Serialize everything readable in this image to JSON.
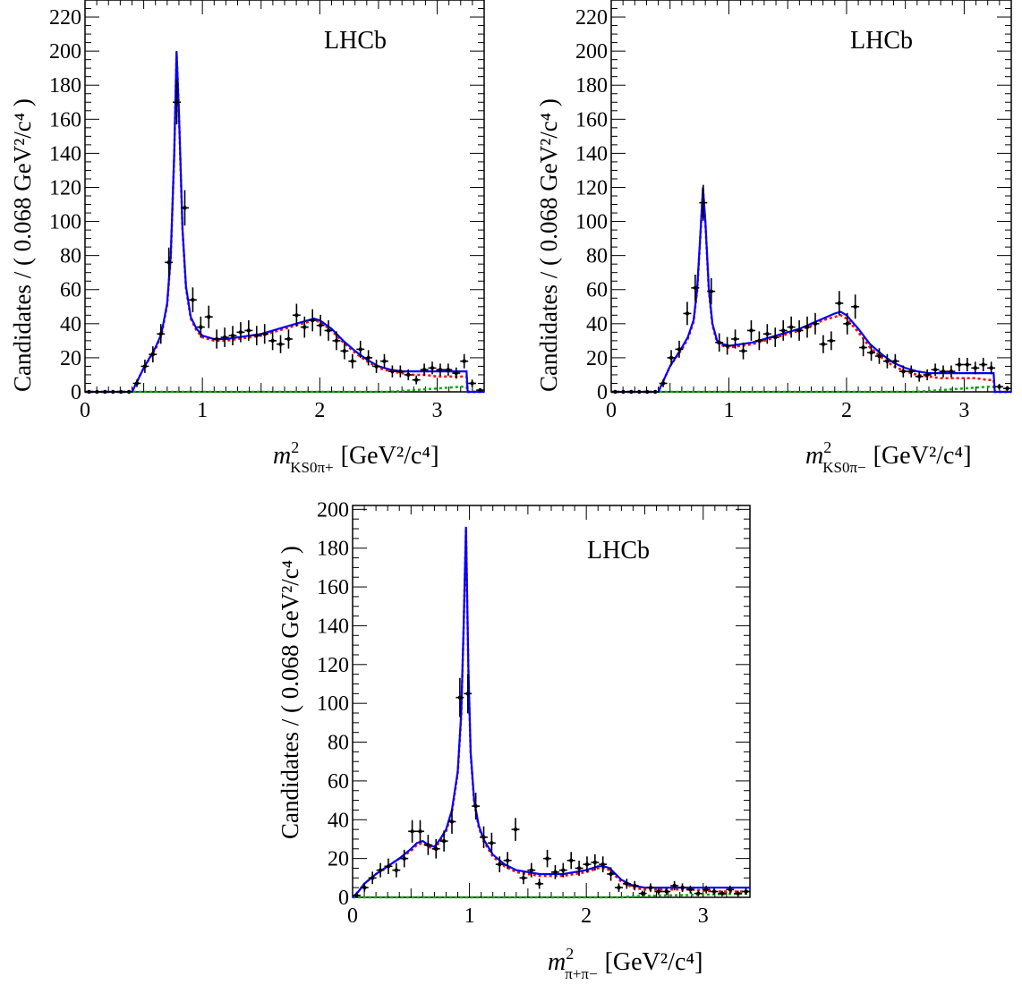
{
  "figure_title": "",
  "colors": {
    "total_fit": "#0000ff",
    "signal": "#ff0000",
    "background": "#00b000",
    "data": "#000000",
    "frame": "#000000"
  },
  "chart_data": [
    {
      "type": "scatter",
      "id": "kspi-plus",
      "title": "",
      "experiment_label": "LHCb",
      "ylabel": "Candidates / ( 0.068 GeV²/c⁴ )",
      "xlabel": {
        "main": "m",
        "sup": "2",
        "sub": "KS0π+",
        "unit": "[GeV²/c⁴]"
      },
      "xlim": [
        0,
        3.4
      ],
      "ylim": [
        0,
        230
      ],
      "x_ticks": [
        0,
        1,
        2,
        3
      ],
      "y_ticks": [
        0,
        20,
        40,
        60,
        80,
        100,
        120,
        140,
        160,
        180,
        200,
        220
      ],
      "grid": false,
      "legend": "none",
      "data_points": {
        "x": [
          0.034,
          0.102,
          0.17,
          0.238,
          0.306,
          0.374,
          0.442,
          0.51,
          0.578,
          0.646,
          0.714,
          0.782,
          0.85,
          0.918,
          0.986,
          1.054,
          1.122,
          1.19,
          1.258,
          1.326,
          1.394,
          1.462,
          1.53,
          1.598,
          1.666,
          1.734,
          1.802,
          1.87,
          1.938,
          2.006,
          2.074,
          2.142,
          2.21,
          2.278,
          2.346,
          2.414,
          2.482,
          2.55,
          2.618,
          2.686,
          2.754,
          2.822,
          2.89,
          2.958,
          3.026,
          3.094,
          3.162,
          3.23,
          3.298,
          3.366
        ],
        "y": [
          0,
          0,
          0,
          0,
          0,
          0,
          5,
          15,
          22,
          34,
          76,
          170,
          108,
          54,
          38,
          44,
          31,
          32,
          33,
          35,
          36,
          33,
          34,
          30,
          28,
          31,
          45,
          38,
          42,
          39,
          36,
          30,
          24,
          18,
          25,
          20,
          15,
          18,
          12,
          12,
          10,
          7,
          13,
          14,
          13,
          13,
          11,
          18,
          5,
          1
        ],
        "yerr": [
          0,
          0,
          0,
          0,
          0,
          0,
          2.2,
          3.9,
          4.7,
          5.8,
          8.7,
          13.0,
          10.4,
          7.3,
          6.2,
          6.6,
          5.6,
          5.7,
          5.7,
          5.9,
          6.0,
          5.7,
          5.8,
          5.5,
          5.3,
          5.6,
          6.7,
          6.2,
          6.5,
          6.2,
          6.0,
          5.5,
          4.9,
          4.2,
          5.0,
          4.5,
          3.9,
          4.2,
          3.5,
          3.5,
          3.2,
          2.6,
          3.6,
          3.7,
          3.6,
          3.6,
          3.3,
          4.2,
          2.2,
          1
        ]
      },
      "fit_curves": {
        "x": [
          0.0,
          0.3,
          0.4,
          0.5,
          0.6,
          0.65,
          0.7,
          0.73,
          0.76,
          0.78,
          0.8,
          0.83,
          0.86,
          0.9,
          0.95,
          1.0,
          1.1,
          1.2,
          1.3,
          1.4,
          1.5,
          1.6,
          1.7,
          1.8,
          1.9,
          1.95,
          2.0,
          2.1,
          2.2,
          2.3,
          2.4,
          2.5,
          2.6,
          2.7,
          2.8,
          2.9,
          3.0,
          3.1,
          3.2,
          3.25,
          3.26,
          3.4
        ],
        "total": [
          0,
          0,
          0,
          14,
          26,
          34,
          52,
          80,
          140,
          200,
          165,
          96,
          62,
          44,
          37,
          33,
          31,
          31,
          32,
          33,
          34,
          36,
          38,
          40,
          42,
          43,
          42,
          37,
          30,
          24,
          19,
          15,
          13,
          12,
          12,
          12,
          12,
          12,
          12,
          12,
          0,
          0
        ],
        "signal": [
          0,
          0,
          0,
          14,
          25,
          33,
          51,
          79,
          139,
          199,
          164,
          95,
          61,
          43,
          36,
          32,
          30,
          30,
          31,
          32,
          33,
          35,
          37,
          39,
          41,
          42,
          41,
          36,
          29,
          23,
          18,
          14,
          12,
          11,
          10,
          10,
          9,
          9,
          9,
          9,
          0,
          0
        ],
        "background": [
          0,
          0,
          0,
          0,
          0,
          0,
          0,
          0,
          0,
          0,
          0,
          0,
          0,
          0,
          0,
          0,
          0,
          0,
          0,
          0,
          0,
          0,
          0,
          0,
          0,
          0,
          0,
          0,
          0,
          0,
          0,
          0,
          0,
          0.5,
          1,
          1.5,
          2,
          2.5,
          3,
          3,
          0,
          0
        ]
      }
    },
    {
      "type": "scatter",
      "id": "kspi-minus",
      "title": "",
      "experiment_label": "LHCb",
      "ylabel": "Candidates / ( 0.068 GeV²/c⁴ )",
      "xlabel": {
        "main": "m",
        "sup": "2",
        "sub": "KS0π−",
        "unit": "[GeV²/c⁴]"
      },
      "xlim": [
        0,
        3.4
      ],
      "ylim": [
        0,
        230
      ],
      "x_ticks": [
        0,
        1,
        2,
        3
      ],
      "y_ticks": [
        0,
        20,
        40,
        60,
        80,
        100,
        120,
        140,
        160,
        180,
        200,
        220
      ],
      "grid": false,
      "legend": "none",
      "data_points": {
        "x": [
          0.034,
          0.102,
          0.17,
          0.238,
          0.306,
          0.374,
          0.442,
          0.51,
          0.578,
          0.646,
          0.714,
          0.782,
          0.85,
          0.918,
          0.986,
          1.054,
          1.122,
          1.19,
          1.258,
          1.326,
          1.394,
          1.462,
          1.53,
          1.598,
          1.666,
          1.734,
          1.802,
          1.87,
          1.938,
          2.006,
          2.074,
          2.142,
          2.21,
          2.278,
          2.346,
          2.414,
          2.482,
          2.55,
          2.618,
          2.686,
          2.754,
          2.822,
          2.89,
          2.958,
          3.026,
          3.094,
          3.162,
          3.23,
          3.298,
          3.366
        ],
        "y": [
          0,
          0,
          0,
          0,
          0,
          0,
          5,
          20,
          25,
          46,
          61,
          111,
          59,
          29,
          27,
          31,
          24,
          36,
          30,
          34,
          32,
          36,
          38,
          36,
          38,
          40,
          28,
          30,
          52,
          40,
          50,
          26,
          23,
          21,
          18,
          18,
          12,
          12,
          9,
          10,
          13,
          12,
          12,
          16,
          16,
          14,
          16,
          14,
          3,
          2
        ],
        "yerr": [
          0,
          0,
          0,
          0,
          0,
          0,
          2.2,
          4.5,
          5.0,
          6.8,
          7.8,
          10.5,
          7.7,
          5.4,
          5.2,
          5.6,
          4.9,
          6.0,
          5.5,
          5.8,
          5.7,
          6.0,
          6.2,
          6.0,
          6.2,
          6.3,
          5.3,
          5.5,
          7.2,
          6.3,
          7.1,
          5.1,
          4.8,
          4.6,
          4.2,
          4.2,
          3.5,
          3.5,
          3.0,
          3.2,
          3.6,
          3.5,
          3.5,
          4.0,
          4.0,
          3.7,
          4.0,
          3.7,
          1.7,
          1.4
        ]
      },
      "fit_curves": {
        "x": [
          0.0,
          0.3,
          0.4,
          0.5,
          0.6,
          0.65,
          0.7,
          0.73,
          0.76,
          0.78,
          0.8,
          0.83,
          0.86,
          0.9,
          0.95,
          1.0,
          1.1,
          1.2,
          1.3,
          1.4,
          1.5,
          1.6,
          1.7,
          1.8,
          1.9,
          1.95,
          2.0,
          2.1,
          2.2,
          2.3,
          2.4,
          2.5,
          2.6,
          2.7,
          2.8,
          2.9,
          3.0,
          3.1,
          3.2,
          3.25,
          3.26,
          3.4
        ],
        "total": [
          0,
          0,
          0,
          15,
          26,
          32,
          42,
          60,
          95,
          120,
          100,
          60,
          40,
          30,
          28,
          27,
          28,
          29,
          31,
          33,
          35,
          37,
          40,
          43,
          46,
          47,
          45,
          37,
          28,
          22,
          17,
          14,
          12,
          11,
          11,
          11,
          11,
          11,
          11,
          11,
          0,
          0
        ],
        "signal": [
          0,
          0,
          0,
          15,
          25,
          31,
          41,
          59,
          94,
          119,
          99,
          59,
          39,
          29,
          27,
          26,
          27,
          28,
          30,
          32,
          34,
          36,
          39,
          42,
          44,
          45,
          43,
          35,
          26,
          20,
          15,
          12,
          10,
          9,
          8,
          8,
          8,
          8,
          7,
          7,
          0,
          0
        ],
        "background": [
          0,
          0,
          0,
          0,
          0,
          0,
          0,
          0,
          0,
          0,
          0,
          0,
          0,
          0,
          0,
          0,
          0,
          0,
          0,
          0,
          0,
          0,
          0,
          0,
          0,
          0,
          0,
          0,
          0,
          0,
          0,
          0,
          0,
          0.5,
          1,
          1.5,
          2,
          2.5,
          3,
          3,
          0,
          0
        ]
      }
    },
    {
      "type": "scatter",
      "id": "pipi",
      "title": "",
      "experiment_label": "LHCb",
      "ylabel": "Candidates / ( 0.068 GeV²/c⁴ )",
      "xlabel": {
        "main": "m",
        "sup": "2",
        "sub": "π+π−",
        "unit": "[GeV²/c⁴]"
      },
      "xlim": [
        0,
        3.4
      ],
      "ylim": [
        0,
        202
      ],
      "x_ticks": [
        0,
        1,
        2,
        3
      ],
      "y_ticks": [
        0,
        20,
        40,
        60,
        80,
        100,
        120,
        140,
        160,
        180,
        200
      ],
      "grid": false,
      "legend": "none",
      "data_points": {
        "x": [
          0.034,
          0.102,
          0.17,
          0.238,
          0.306,
          0.374,
          0.442,
          0.51,
          0.578,
          0.646,
          0.714,
          0.782,
          0.85,
          0.918,
          0.986,
          1.054,
          1.122,
          1.19,
          1.258,
          1.326,
          1.394,
          1.462,
          1.53,
          1.598,
          1.666,
          1.734,
          1.802,
          1.87,
          1.938,
          2.006,
          2.074,
          2.142,
          2.21,
          2.278,
          2.346,
          2.414,
          2.482,
          2.55,
          2.618,
          2.686,
          2.754,
          2.822,
          2.89,
          2.958,
          3.026,
          3.094,
          3.162,
          3.23,
          3.298,
          3.366
        ],
        "y": [
          1,
          5,
          10,
          14,
          16,
          14,
          20,
          34,
          34,
          27,
          25,
          29,
          39,
          103,
          105,
          47,
          31,
          28,
          17,
          19,
          35,
          10,
          14,
          7,
          20,
          13,
          14,
          19,
          15,
          17,
          18,
          17,
          12,
          5,
          7,
          6,
          2,
          5,
          3,
          3,
          6,
          5,
          4,
          2,
          4,
          3,
          2,
          4,
          2,
          3
        ],
        "yerr": [
          1,
          2.2,
          3.2,
          3.7,
          4.0,
          3.7,
          4.5,
          5.8,
          5.8,
          5.2,
          5.0,
          5.4,
          6.2,
          10.1,
          10.2,
          6.9,
          5.6,
          5.3,
          4.1,
          4.4,
          5.9,
          3.2,
          3.7,
          2.6,
          4.5,
          3.6,
          3.7,
          4.4,
          3.9,
          4.1,
          4.2,
          4.1,
          3.5,
          2.2,
          2.6,
          2.4,
          1.4,
          2.2,
          1.7,
          1.7,
          2.4,
          2.2,
          2.0,
          1.4,
          2.0,
          1.7,
          1.4,
          2.0,
          1.4,
          1.7
        ]
      },
      "fit_curves": {
        "x": [
          0.0,
          0.05,
          0.1,
          0.2,
          0.3,
          0.4,
          0.5,
          0.55,
          0.6,
          0.65,
          0.7,
          0.75,
          0.8,
          0.85,
          0.9,
          0.93,
          0.95,
          0.97,
          0.99,
          1.01,
          1.04,
          1.08,
          1.12,
          1.2,
          1.3,
          1.4,
          1.5,
          1.6,
          1.7,
          1.8,
          1.9,
          2.0,
          2.1,
          2.15,
          2.2,
          2.3,
          2.4,
          2.5,
          2.7,
          2.9,
          3.1,
          3.3,
          3.4
        ],
        "total": [
          0,
          3,
          7,
          12,
          16,
          20,
          25,
          28,
          29,
          27,
          26,
          30,
          35,
          45,
          65,
          95,
          140,
          191,
          120,
          75,
          50,
          37,
          30,
          22,
          17,
          14,
          13,
          12,
          12,
          12,
          13,
          14,
          16,
          16,
          15,
          9,
          6,
          5,
          5,
          5,
          5,
          5,
          5
        ],
        "signal": [
          0,
          3,
          7,
          12,
          16,
          20,
          24,
          27,
          28,
          26,
          25,
          29,
          34,
          44,
          64,
          94,
          139,
          190,
          119,
          74,
          49,
          36,
          29,
          21,
          16,
          13,
          12,
          11,
          11,
          11,
          12,
          13,
          15,
          15,
          14,
          8,
          5,
          4,
          4,
          4,
          3,
          3,
          3
        ],
        "background": [
          0,
          0,
          0,
          0,
          0,
          0,
          0,
          0,
          0,
          0,
          0,
          0,
          0,
          0,
          0,
          0,
          0,
          0,
          0,
          0,
          0,
          0,
          0,
          0,
          0,
          0,
          0,
          0,
          0,
          0,
          0,
          0,
          0,
          0,
          0,
          0,
          0.5,
          0.7,
          1,
          1.2,
          1.5,
          1.8,
          2
        ]
      }
    }
  ]
}
